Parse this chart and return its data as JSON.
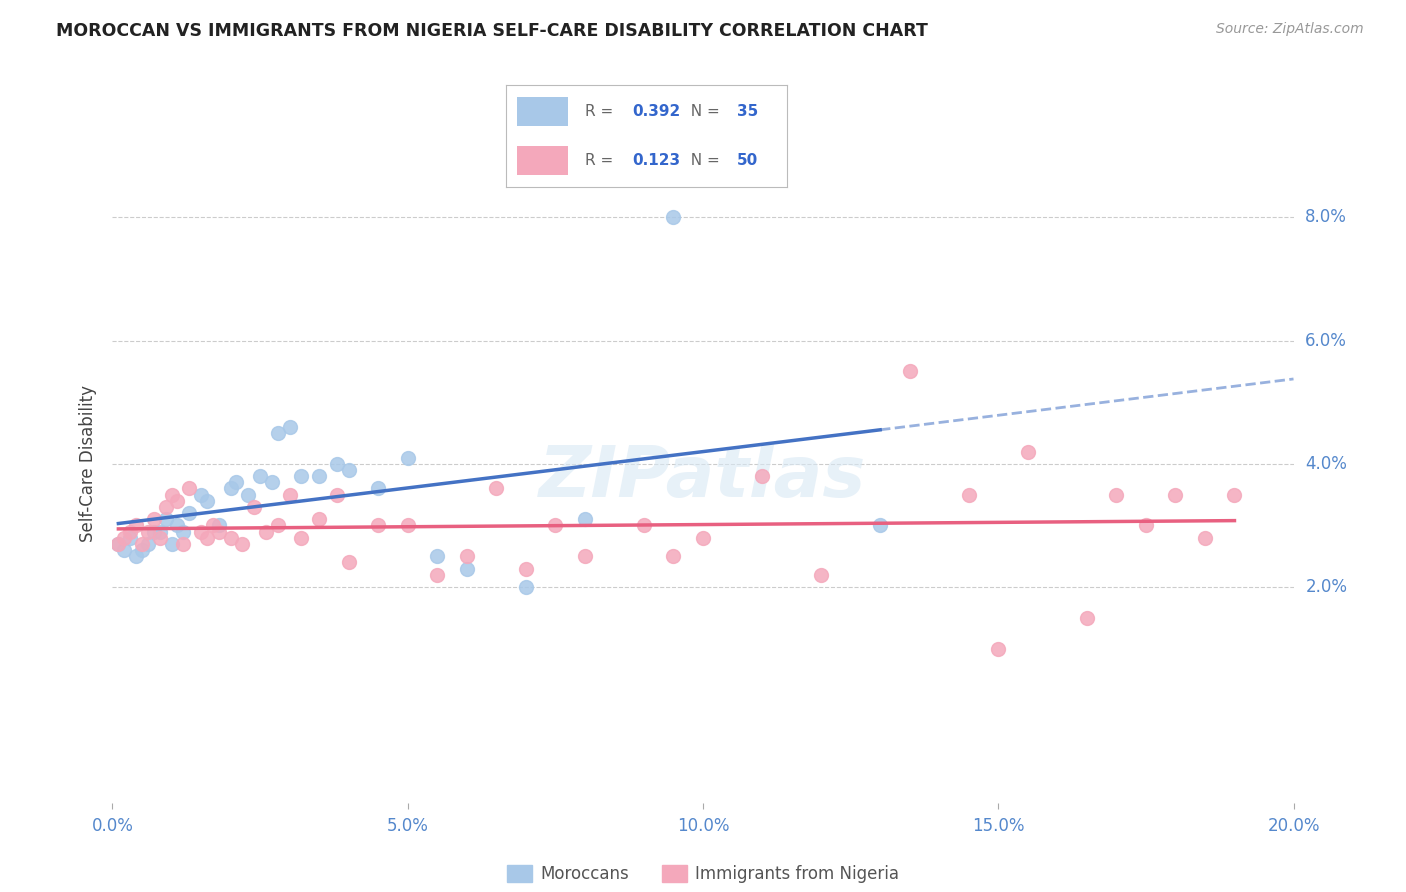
{
  "title": "MOROCCAN VS IMMIGRANTS FROM NIGERIA SELF-CARE DISABILITY CORRELATION CHART",
  "source": "Source: ZipAtlas.com",
  "ylabel": "Self-Care Disability",
  "xlabel_ticks": [
    "0.0%",
    "5.0%",
    "10.0%",
    "15.0%",
    "20.0%"
  ],
  "xlabel_vals": [
    0.0,
    5.0,
    10.0,
    15.0,
    20.0
  ],
  "ylabel_ticks": [
    "2.0%",
    "4.0%",
    "6.0%",
    "8.0%"
  ],
  "ylabel_vals": [
    2.0,
    4.0,
    6.0,
    8.0
  ],
  "xlim": [
    0.0,
    20.0
  ],
  "ylim": [
    -1.5,
    9.5
  ],
  "moroccan_R": "0.392",
  "moroccan_N": "35",
  "nigeria_R": "0.123",
  "nigeria_N": "50",
  "moroccan_color": "#A8C8E8",
  "nigeria_color": "#F4A8BB",
  "moroccan_line_color": "#4472C4",
  "nigeria_line_color": "#E86080",
  "legend_R_color": "#3366CC",
  "legend_N_color": "#3366CC",
  "watermark": "ZIPatlas",
  "moroccan_x": [
    0.1,
    0.2,
    0.3,
    0.4,
    0.5,
    0.6,
    0.7,
    0.8,
    0.9,
    1.0,
    1.1,
    1.2,
    1.3,
    1.5,
    1.6,
    1.8,
    2.0,
    2.1,
    2.3,
    2.5,
    2.7,
    2.8,
    3.0,
    3.2,
    3.5,
    3.8,
    4.0,
    4.5,
    5.0,
    5.5,
    6.0,
    7.0,
    8.0,
    9.5,
    13.0
  ],
  "moroccan_y": [
    2.7,
    2.6,
    2.8,
    2.5,
    2.6,
    2.7,
    2.9,
    2.9,
    3.1,
    2.7,
    3.0,
    2.9,
    3.2,
    3.5,
    3.4,
    3.0,
    3.6,
    3.7,
    3.5,
    3.8,
    3.7,
    4.5,
    4.6,
    3.8,
    3.8,
    4.0,
    3.9,
    3.6,
    4.1,
    2.5,
    2.3,
    2.0,
    3.1,
    8.0,
    3.0
  ],
  "nigeria_x": [
    0.1,
    0.2,
    0.3,
    0.4,
    0.5,
    0.6,
    0.7,
    0.8,
    0.9,
    1.0,
    1.1,
    1.2,
    1.3,
    1.5,
    1.6,
    1.7,
    1.8,
    2.0,
    2.2,
    2.4,
    2.6,
    2.8,
    3.0,
    3.2,
    3.5,
    3.8,
    4.0,
    4.5,
    5.0,
    5.5,
    6.0,
    6.5,
    7.0,
    7.5,
    8.0,
    9.0,
    9.5,
    10.0,
    11.0,
    12.0,
    13.5,
    14.5,
    15.5,
    16.5,
    17.0,
    17.5,
    18.0,
    18.5,
    19.0,
    15.0
  ],
  "nigeria_y": [
    2.7,
    2.8,
    2.9,
    3.0,
    2.7,
    2.9,
    3.1,
    2.8,
    3.3,
    3.5,
    3.4,
    2.7,
    3.6,
    2.9,
    2.8,
    3.0,
    2.9,
    2.8,
    2.7,
    3.3,
    2.9,
    3.0,
    3.5,
    2.8,
    3.1,
    3.5,
    2.4,
    3.0,
    3.0,
    2.2,
    2.5,
    3.6,
    2.3,
    3.0,
    2.5,
    3.0,
    2.5,
    2.8,
    3.8,
    2.2,
    5.5,
    3.5,
    4.2,
    1.5,
    3.5,
    3.0,
    3.5,
    2.8,
    3.5,
    1.0
  ]
}
